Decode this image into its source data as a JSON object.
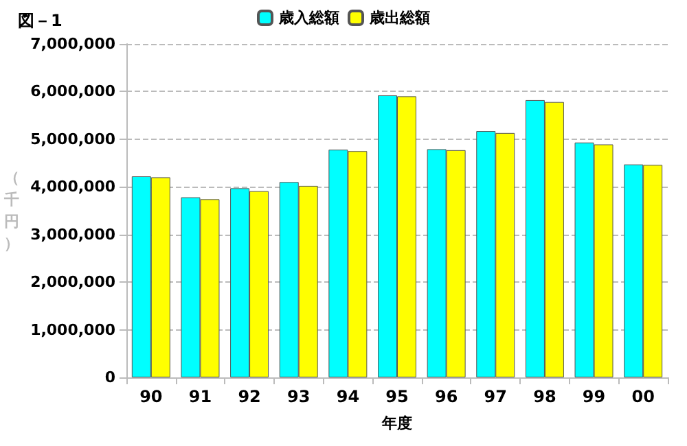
{
  "chart_data": {
    "type": "bar",
    "title": "図－1",
    "xlabel": "年度",
    "ylabel": "（千円）",
    "categories": [
      "90",
      "91",
      "92",
      "93",
      "94",
      "95",
      "96",
      "97",
      "98",
      "99",
      "00"
    ],
    "series": [
      {
        "name": "歳入総額",
        "color": "#00ffff",
        "values": [
          4220000,
          3780000,
          3970000,
          4100000,
          4780000,
          5920000,
          4790000,
          5170000,
          5820000,
          4930000,
          4470000
        ]
      },
      {
        "name": "歳出総額",
        "color": "#ffff00",
        "values": [
          4200000,
          3740000,
          3910000,
          4020000,
          4750000,
          5900000,
          4770000,
          5130000,
          5780000,
          4890000,
          4460000
        ]
      }
    ],
    "ylim": [
      0,
      7000000
    ],
    "yticks": [
      {
        "value": 0,
        "label": "0"
      },
      {
        "value": 1000000,
        "label": "1,000,000"
      },
      {
        "value": 2000000,
        "label": "2,000,000"
      },
      {
        "value": 3000000,
        "label": "3,000,000"
      },
      {
        "value": 4000000,
        "label": "4,000,000"
      },
      {
        "value": 5000000,
        "label": "5,000,000"
      },
      {
        "value": 6000000,
        "label": "6,000,000"
      },
      {
        "value": 7000000,
        "label": "7,000,000"
      }
    ],
    "grid": "y",
    "legend": "top"
  }
}
